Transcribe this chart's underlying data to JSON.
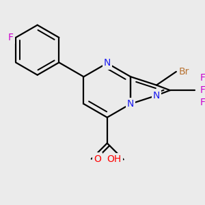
{
  "bg_color": "#ebebeb",
  "bond_color": "#000000",
  "bond_width": 1.6,
  "atom_colors": {
    "N": "#1c1cf0",
    "O": "#ff0000",
    "F": "#cc00cc",
    "Br": "#b87333",
    "C": "#000000"
  },
  "font_size": 10
}
